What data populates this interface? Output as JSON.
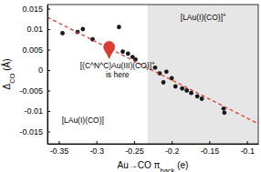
{
  "chart_data": {
    "type": "scatter",
    "x_label": [
      {
        "text": "Au→CO π"
      },
      {
        "text": "back",
        "sub": true
      },
      {
        "text": " (e)"
      }
    ],
    "y_label": [
      {
        "text": "Δ"
      },
      {
        "text": "CO",
        "sub": true
      },
      {
        "text": " (Å)"
      }
    ],
    "xlim": [
      -0.365,
      -0.085
    ],
    "xticks": [
      -0.35,
      -0.3,
      -0.25,
      -0.2,
      -0.15,
      -0.1
    ],
    "ylim": [
      -0.018,
      0.016
    ],
    "yticks": [
      -0.015,
      -0.01,
      -0.005,
      0,
      0.005,
      0.01,
      0.015
    ],
    "series": [
      {
        "type": "scatter",
        "color": "#1a1a1a",
        "marker": "circle",
        "x": [
          -0.345,
          -0.325,
          -0.318,
          -0.305,
          -0.27,
          -0.265,
          -0.258,
          -0.252,
          -0.248,
          -0.222,
          -0.216,
          -0.207,
          -0.211,
          -0.2,
          -0.195,
          -0.186,
          -0.18,
          -0.174,
          -0.166,
          -0.16,
          -0.131,
          -0.13
        ],
        "values": [
          0.009,
          0.0093,
          0.01,
          0.0075,
          0.0105,
          0.0045,
          0.004,
          0.0032,
          0.0026,
          0.0006,
          -0.0008,
          -0.0004,
          -0.003,
          -0.002,
          -0.004,
          -0.0045,
          -0.005,
          -0.0056,
          -0.0064,
          -0.007,
          -0.0094,
          -0.0104
        ]
      },
      {
        "type": "line",
        "color": "#e03c31",
        "line_style": "dashed",
        "x": [
          -0.365,
          -0.085
        ],
        "values": [
          0.0129,
          -0.0131
        ]
      },
      {
        "type": "scatter",
        "color": "#e03c31",
        "marker": "pin",
        "x": [
          -0.283
        ],
        "values": [
          0.0028
        ]
      }
    ],
    "shaded_region": {
      "xlim": [
        -0.232,
        -0.085
      ],
      "color": "#e6e6e6"
    },
    "annotations": [
      {
        "x": -0.158,
        "y": 0.0122,
        "lines": [
          [
            {
              "text": "[LAu(I)(CO)]"
            },
            {
              "text": "+",
              "sup": true
            }
          ]
        ]
      },
      {
        "x": -0.318,
        "y": -0.0128,
        "lines": [
          [
            {
              "text": "[LAu(I)(CO)]"
            }
          ]
        ]
      },
      {
        "x": -0.272,
        "y": 0.0004,
        "lines": [
          [
            {
              "text": "[(C^N^C)Au(III)(CO)]"
            },
            {
              "text": "+",
              "sup": true
            }
          ],
          [
            {
              "text": "is here"
            }
          ]
        ]
      }
    ]
  }
}
